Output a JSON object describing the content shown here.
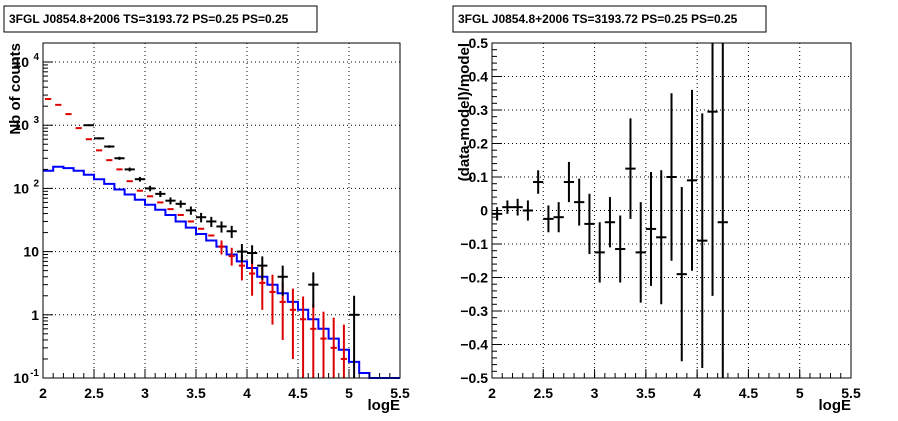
{
  "chart_data": [
    {
      "type": "histogram",
      "title": "3FGL J0854.8+2006 TS=3193.72 PS=0.25 PS=0.25",
      "xlabel": "logE",
      "ylabel": "Nb of counts",
      "xlim": [
        2,
        5.5
      ],
      "ylim": [
        0.1,
        20000
      ],
      "yscale": "log",
      "grid": true,
      "xticks": [
        "2",
        "2.5",
        "3",
        "3.5",
        "4",
        "4.5",
        "5",
        "5.5"
      ],
      "yticks": [
        {
          "value": 0.1,
          "label": "10",
          "exp": "-1"
        },
        {
          "value": 1,
          "label": "1",
          "exp": ""
        },
        {
          "value": 10,
          "label": "10",
          "exp": ""
        },
        {
          "value": 100,
          "label": "10",
          "exp": "2"
        },
        {
          "value": 1000,
          "label": "10",
          "exp": "3"
        },
        {
          "value": 10000,
          "label": "10",
          "exp": "4"
        }
      ],
      "bin_edges": [
        2.0,
        2.1,
        2.2,
        2.3,
        2.4,
        2.5,
        2.6,
        2.7,
        2.8,
        2.9,
        3.0,
        3.1,
        3.2,
        3.3,
        3.4,
        3.5,
        3.6,
        3.7,
        3.8,
        3.9,
        4.0,
        4.1,
        4.2,
        4.3,
        4.4,
        4.5,
        4.6,
        4.7,
        4.8,
        4.9,
        5.0,
        5.1,
        5.2,
        5.3,
        5.4,
        5.5
      ],
      "series": [
        {
          "role": "model-step",
          "color": "#0000ff",
          "values": [
            190,
            220,
            210,
            190,
            165,
            140,
            118,
            96,
            80,
            66,
            55,
            46,
            38,
            30,
            24,
            19,
            15,
            12,
            9,
            7,
            5.5,
            4.0,
            3.0,
            2.2,
            1.6,
            1.2,
            0.85,
            0.6,
            0.42,
            0.28,
            0.18,
            0.12,
            0.1,
            0.1,
            0.1
          ]
        },
        {
          "role": "model-points",
          "color": "#dd0000",
          "values": [
            2600,
            2100,
            1500,
            900,
            600,
            400,
            280,
            200,
            130,
            92,
            75,
            60,
            47,
            38,
            30,
            23,
            18,
            12,
            8.5,
            6.0,
            4.5,
            3.2,
            2.3,
            1.6,
            1.2,
            0.85,
            0.6,
            0.42,
            0.3,
            0.2
          ],
          "err_lo": [
            0,
            0,
            0,
            0,
            0,
            0,
            0,
            0,
            0,
            0,
            0,
            0,
            0,
            0,
            0,
            0,
            0,
            3,
            2.5,
            2.5,
            2.5,
            2.0,
            1.6,
            1.2,
            1.0,
            0.8,
            0.6,
            0.42,
            0.3,
            0.2
          ],
          "err_hi": [
            0,
            0,
            0,
            0,
            0,
            0,
            0,
            0,
            0,
            0,
            0,
            0,
            0,
            0,
            0,
            0,
            0,
            3,
            3,
            3,
            3,
            2.5,
            2.0,
            1.7,
            1.4,
            1.1,
            0.9,
            0.7,
            0.6,
            0.5
          ]
        },
        {
          "role": "data",
          "color": "#000000",
          "x": [
            2.45,
            2.55,
            2.65,
            2.75,
            2.85,
            2.95,
            3.05,
            3.15,
            3.25,
            3.35,
            3.45,
            3.55,
            3.65,
            3.75,
            3.85,
            3.95,
            4.05,
            4.15,
            4.35,
            4.65,
            5.05
          ],
          "values": [
            1000,
            620,
            460,
            300,
            200,
            140,
            100,
            82,
            64,
            57,
            45,
            35,
            30,
            25,
            21,
            10,
            9.5,
            6.0,
            4.0,
            3.0,
            1.0
          ],
          "err": [
            32,
            25,
            21,
            17,
            14,
            12,
            10,
            9,
            8,
            7.5,
            6.7,
            6,
            5.5,
            5,
            4.6,
            3.2,
            3.1,
            2.4,
            2.0,
            1.7,
            1.0
          ]
        }
      ]
    },
    {
      "type": "scatter",
      "title": "3FGL J0854.8+2006 TS=3193.72 PS=0.25 PS=0.25",
      "xlabel": "logE",
      "ylabel": "(data-model)/model",
      "xlim": [
        2,
        5.5
      ],
      "ylim": [
        -0.5,
        0.5
      ],
      "grid": true,
      "xticks": [
        "2",
        "2.5",
        "3",
        "3.5",
        "4",
        "4.5",
        "5",
        "5.5"
      ],
      "yticks": [
        "-0.5",
        "-0.4",
        "-0.3",
        "-0.2",
        "-0.1",
        "0",
        "0.1",
        "0.2",
        "0.3",
        "0.4",
        "0.5"
      ],
      "points": [
        {
          "x": 2.05,
          "y": -0.01,
          "xerr": 0.05,
          "yerr": 0.02
        },
        {
          "x": 2.15,
          "y": 0.01,
          "xerr": 0.05,
          "yerr": 0.02
        },
        {
          "x": 2.25,
          "y": 0.01,
          "xerr": 0.05,
          "yerr": 0.025
        },
        {
          "x": 2.35,
          "y": 0.0,
          "xerr": 0.05,
          "yerr": 0.03
        },
        {
          "x": 2.45,
          "y": 0.085,
          "xerr": 0.05,
          "yerr": 0.035
        },
        {
          "x": 2.55,
          "y": -0.025,
          "xerr": 0.05,
          "yerr": 0.04
        },
        {
          "x": 2.65,
          "y": -0.02,
          "xerr": 0.05,
          "yerr": 0.045
        },
        {
          "x": 2.75,
          "y": 0.085,
          "xerr": 0.05,
          "yerr": 0.06
        },
        {
          "x": 2.85,
          "y": 0.025,
          "xerr": 0.05,
          "yerr": 0.07
        },
        {
          "x": 2.95,
          "y": -0.04,
          "xerr": 0.05,
          "yerr": 0.09
        },
        {
          "x": 3.05,
          "y": -0.125,
          "xerr": 0.05,
          "yerr": 0.09
        },
        {
          "x": 3.15,
          "y": -0.035,
          "xerr": 0.05,
          "yerr": 0.075
        },
        {
          "x": 3.25,
          "y": -0.115,
          "xerr": 0.05,
          "yerr": 0.1
        },
        {
          "x": 3.35,
          "y": 0.125,
          "xerr": 0.05,
          "yerr": 0.15
        },
        {
          "x": 3.45,
          "y": -0.125,
          "xerr": 0.05,
          "yerr": 0.15
        },
        {
          "x": 3.55,
          "y": -0.055,
          "xerr": 0.05,
          "yerr": 0.17
        },
        {
          "x": 3.65,
          "y": -0.08,
          "xerr": 0.05,
          "yerr": 0.2
        },
        {
          "x": 3.75,
          "y": 0.1,
          "xerr": 0.05,
          "yerr": 0.25
        },
        {
          "x": 3.85,
          "y": -0.19,
          "xerr": 0.05,
          "yerr": 0.26
        },
        {
          "x": 3.95,
          "y": 0.09,
          "xerr": 0.05,
          "yerr": 0.27
        },
        {
          "x": 4.05,
          "y": -0.09,
          "xerr": 0.05,
          "yerr": 0.38
        },
        {
          "x": 4.15,
          "y": 0.295,
          "xerr": 0.05,
          "yerr": 0.55
        },
        {
          "x": 4.25,
          "y": -0.035,
          "xerr": 0.05,
          "yerr": 0.6
        }
      ]
    }
  ]
}
